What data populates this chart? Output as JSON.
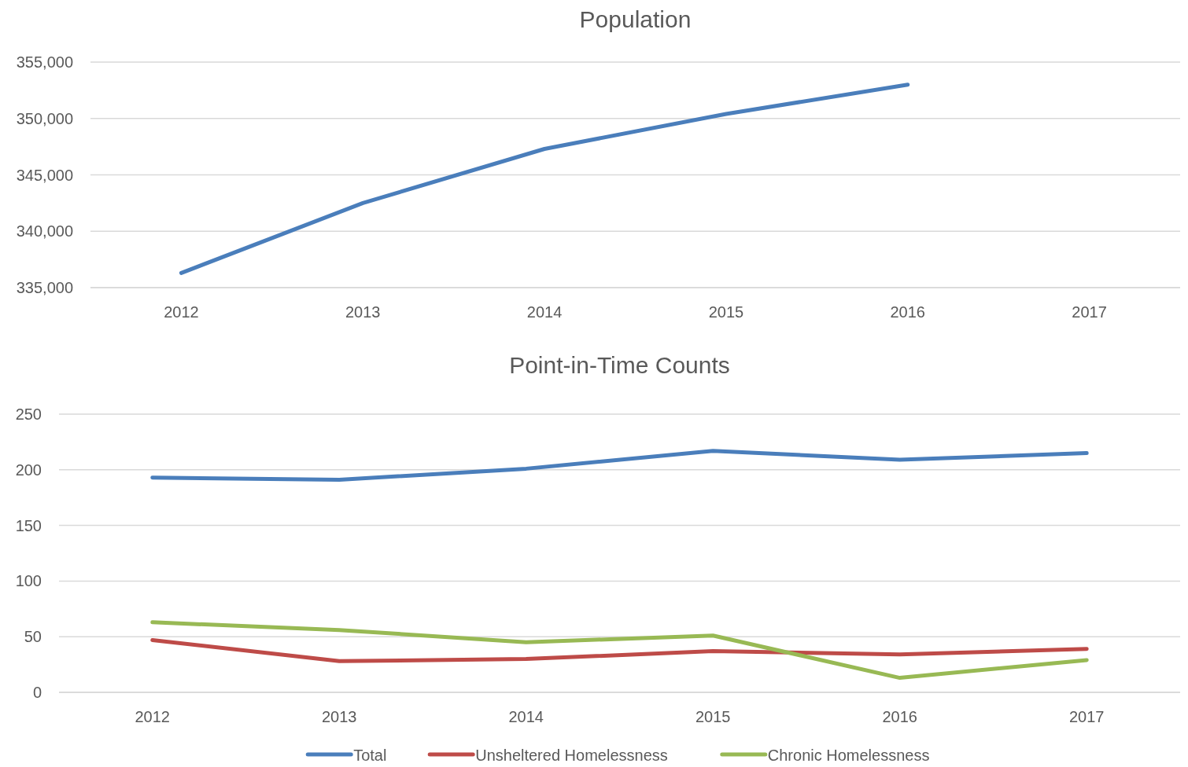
{
  "chart_data": [
    {
      "type": "line",
      "title": "Population",
      "categories": [
        "2012",
        "2013",
        "2014",
        "2015",
        "2016",
        "2017"
      ],
      "series": [
        {
          "color": "#4a7ebb",
          "values": [
            336300,
            342500,
            347300,
            350400,
            353000,
            null
          ]
        }
      ],
      "ylim": [
        335000,
        355000
      ],
      "yticks": [
        {
          "value": 335000,
          "label": "335,000"
        },
        {
          "value": 340000,
          "label": "340,000"
        },
        {
          "value": 345000,
          "label": "345,000"
        },
        {
          "value": 350000,
          "label": "350,000"
        },
        {
          "value": 355000,
          "label": "355,000"
        }
      ],
      "grid": "y",
      "legend": false
    },
    {
      "type": "line",
      "title": "Point-in-Time Counts",
      "categories": [
        "2012",
        "2013",
        "2014",
        "2015",
        "2016",
        "2017"
      ],
      "series": [
        {
          "name": "Total",
          "color": "#4a7ebb",
          "values": [
            193,
            191,
            201,
            217,
            209,
            215
          ]
        },
        {
          "name": "Unsheltered Homelessness",
          "color": "#be4b48",
          "values": [
            47,
            28,
            30,
            37,
            34,
            39
          ]
        },
        {
          "name": "Chronic Homelessness",
          "color": "#98b954",
          "values": [
            63,
            56,
            45,
            51,
            13,
            29
          ]
        }
      ],
      "ylim": [
        0,
        250
      ],
      "yticks": [
        0,
        50,
        100,
        150,
        200,
        250
      ],
      "grid": "y",
      "legend": "bottom"
    }
  ]
}
